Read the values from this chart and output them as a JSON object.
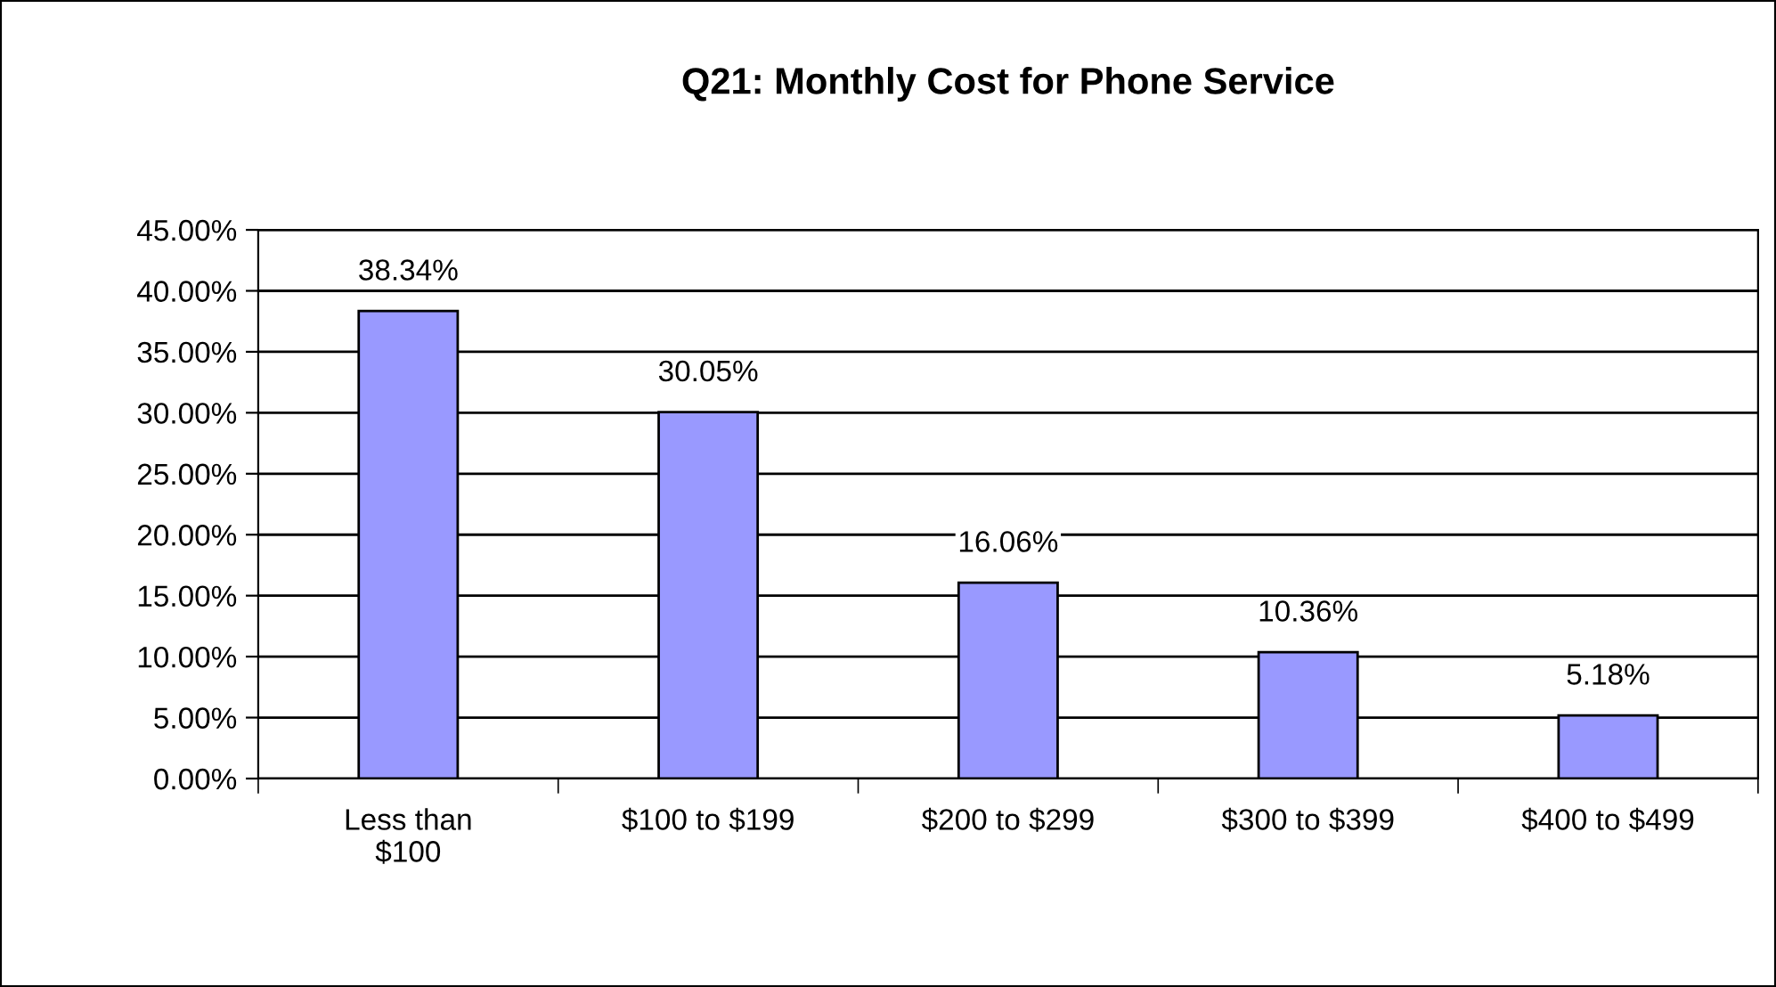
{
  "chart_data": {
    "type": "bar",
    "title": "Q21: Monthly Cost for Phone Service",
    "categories": [
      "Less than\n$100",
      "$100 to $199",
      "$200 to $299",
      "$300 to $399",
      "$400 to $499"
    ],
    "values": [
      38.34,
      30.05,
      16.06,
      10.36,
      5.18
    ],
    "value_labels": [
      "38.34%",
      "30.05%",
      "16.06%",
      "10.36%",
      "5.18%"
    ],
    "color": "#9999ff",
    "ylim": [
      0,
      45
    ],
    "yticks": [
      {
        "value": 0,
        "label": "0.00%"
      },
      {
        "value": 5,
        "label": "5.00%"
      },
      {
        "value": 10,
        "label": "10.00%"
      },
      {
        "value": 15,
        "label": "15.00%"
      },
      {
        "value": 20,
        "label": "20.00%"
      },
      {
        "value": 25,
        "label": "25.00%"
      },
      {
        "value": 30,
        "label": "30.00%"
      },
      {
        "value": 35,
        "label": "35.00%"
      },
      {
        "value": 40,
        "label": "40.00%"
      },
      {
        "value": 45,
        "label": "45.00%"
      }
    ],
    "grid": "y",
    "legend": false
  }
}
